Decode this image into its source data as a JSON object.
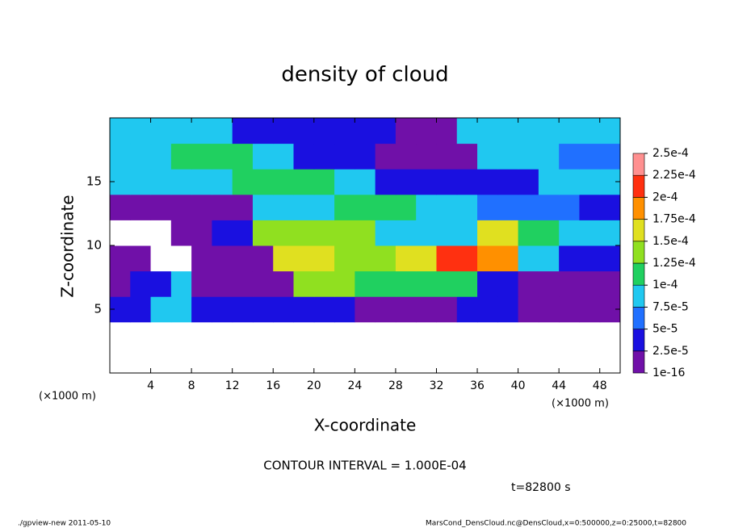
{
  "chart_data": {
    "type": "contour",
    "title": "density of cloud",
    "x_label": "X-coordinate",
    "y_label": "Z-coordinate",
    "x_unit_left": "(×1000 m)",
    "x_unit_right": "(×1000 m)",
    "contour_interval": "CONTOUR INTERVAL = 1.000E-04",
    "time": "t=82800 s",
    "footer_left": "./gpview-new   2011-05-10",
    "footer_right": "MarsCond_DensCloud.nc@DensCloud,x=0:500000,z=0:25000,t=82800",
    "xlim": [
      0,
      50
    ],
    "ylim": [
      0,
      20
    ],
    "xticks": [
      4,
      8,
      12,
      16,
      20,
      24,
      28,
      32,
      36,
      40,
      44,
      48
    ],
    "yticks": [
      5,
      10,
      15
    ],
    "x_edges": [
      0,
      2,
      4,
      6,
      8,
      10,
      12,
      14,
      16,
      18,
      20,
      22,
      24,
      26,
      28,
      30,
      32,
      34,
      36,
      38,
      40,
      42,
      44,
      46,
      48,
      50
    ],
    "z_edges": [
      0,
      2,
      4,
      6,
      8,
      10,
      12,
      14,
      16,
      18,
      20
    ],
    "values": [
      [
        0,
        0,
        0,
        0,
        0,
        0,
        0,
        0,
        0,
        0,
        0,
        0,
        0,
        0,
        0,
        0,
        0,
        0,
        0,
        0,
        0,
        0,
        0,
        0,
        0
      ],
      [
        0,
        0,
        0,
        0,
        0,
        0,
        0,
        0,
        0,
        0,
        0,
        0,
        0,
        0,
        0,
        0,
        0,
        0,
        0,
        0,
        0,
        0,
        0,
        0,
        0
      ],
      [
        3e-05,
        3e-05,
        8e-05,
        8e-05,
        3e-05,
        3e-05,
        3e-05,
        3e-05,
        4e-05,
        4e-05,
        4e-05,
        4e-05,
        1e-05,
        1e-05,
        1e-05,
        1e-05,
        1e-05,
        3e-05,
        3e-05,
        3e-05,
        1e-05,
        1e-05,
        1e-05,
        1e-05,
        1e-05
      ],
      [
        1e-05,
        3e-05,
        3e-05,
        8e-05,
        1e-05,
        1e-05,
        1e-05,
        2e-05,
        2e-05,
        0.00013,
        0.00013,
        0.00013,
        0.00011,
        0.00011,
        0.000115,
        0.000115,
        0.000115,
        0.000115,
        4e-05,
        4e-05,
        1e-05,
        1e-05,
        1e-05,
        1e-05,
        1e-05
      ],
      [
        1e-05,
        1e-05,
        0,
        0,
        1e-05,
        1e-05,
        2e-05,
        2e-05,
        0.00017,
        0.00017,
        0.00017,
        0.000145,
        0.000145,
        0.000145,
        0.00016,
        0.00016,
        0.00021,
        0.00021,
        0.00018,
        0.00018,
        8e-05,
        8e-05,
        3e-05,
        3e-05,
        3e-05
      ],
      [
        0,
        0,
        0,
        1e-05,
        1e-05,
        4e-05,
        4e-05,
        0.00013,
        0.00013,
        0.00013,
        0.00014,
        0.00014,
        0.00014,
        9e-05,
        9e-05,
        8e-05,
        8e-05,
        8e-05,
        0.00015,
        0.00015,
        0.00012,
        0.00012,
        8e-05,
        8e-05,
        8e-05
      ],
      [
        1e-05,
        1e-05,
        1e-05,
        1e-05,
        1e-05,
        1e-05,
        1e-05,
        8e-05,
        8e-05,
        8e-05,
        8e-05,
        0.00012,
        0.00012,
        0.00012,
        0.00012,
        9e-05,
        9e-05,
        9e-05,
        7e-05,
        7e-05,
        7e-05,
        7e-05,
        7e-05,
        4e-05,
        4e-05
      ],
      [
        8e-05,
        8e-05,
        9e-05,
        9e-05,
        9e-05,
        9e-05,
        0.000105,
        0.000105,
        0.000105,
        0.000105,
        0.000105,
        8e-05,
        8e-05,
        4e-05,
        4e-05,
        4e-05,
        4e-05,
        3e-05,
        3e-05,
        3e-05,
        3e-05,
        8e-05,
        8e-05,
        8e-05,
        8e-05
      ],
      [
        8e-05,
        8e-05,
        8e-05,
        0.00011,
        0.00011,
        0.00011,
        0.00011,
        8e-05,
        8e-05,
        4e-05,
        4e-05,
        4e-05,
        4e-05,
        1e-05,
        1e-05,
        1e-05,
        1e-05,
        1e-05,
        8e-05,
        8e-05,
        8e-05,
        8e-05,
        5e-05,
        5e-05,
        5e-05
      ],
      [
        8e-05,
        8e-05,
        8e-05,
        8e-05,
        8e-05,
        8e-05,
        4e-05,
        4e-05,
        4e-05,
        4e-05,
        3e-05,
        3e-05,
        3e-05,
        3e-05,
        1e-05,
        1e-05,
        1e-05,
        9e-05,
        9e-05,
        9e-05,
        9e-05,
        9e-05,
        8e-05,
        8e-05,
        8e-05
      ]
    ],
    "colorbar": {
      "levels": [
        {
          "value": 1e-16,
          "label": "1e-16"
        },
        {
          "value": 2.5e-05,
          "label": "2.5e-5"
        },
        {
          "value": 5e-05,
          "label": "5e-5"
        },
        {
          "value": 7.5e-05,
          "label": "7.5e-5"
        },
        {
          "value": 0.0001,
          "label": "1e-4"
        },
        {
          "value": 0.000125,
          "label": "1.25e-4"
        },
        {
          "value": 0.00015,
          "label": "1.5e-4"
        },
        {
          "value": 0.000175,
          "label": "1.75e-4"
        },
        {
          "value": 0.0002,
          "label": "2e-4"
        },
        {
          "value": 0.000225,
          "label": "2.25e-4"
        },
        {
          "value": 0.00025,
          "label": "2.5e-4"
        }
      ],
      "colors": [
        "#7010a8",
        "#1a10e0",
        "#2070ff",
        "#20c8f0",
        "#20d060",
        "#90e020",
        "#e0e020",
        "#ff9000",
        "#ff3010",
        "#ff9090"
      ]
    }
  }
}
